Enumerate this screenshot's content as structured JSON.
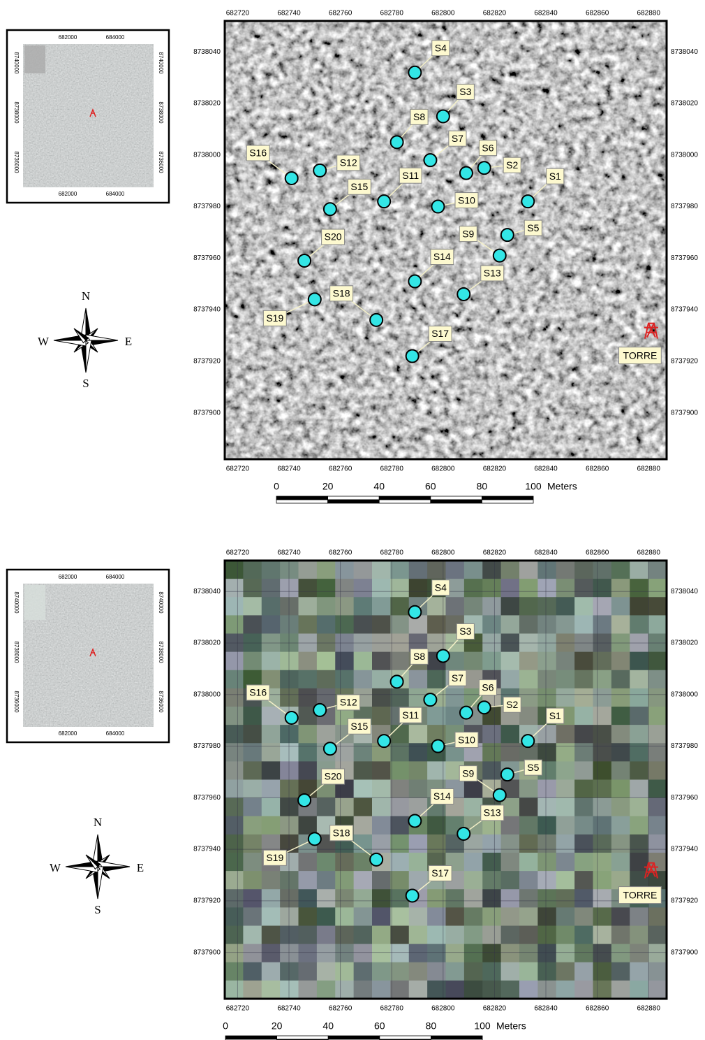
{
  "panels": [
    {
      "inset": {
        "xlim": [
          680118,
          685618
        ],
        "ylim": [
          8734986,
          8740761
        ],
        "xticks": [
          682000,
          684000
        ],
        "yticks": [
          8740000,
          8738000,
          8736000
        ]
      },
      "compass": {
        "n": "N",
        "w": "W",
        "e": "E",
        "s": "S"
      },
      "map": {
        "xlim": [
          682715,
          682887
        ],
        "ylim": [
          8737882,
          8738052
        ],
        "grid": false,
        "xticks": [
          682720,
          682740,
          682760,
          682780,
          682800,
          682820,
          682840,
          682860,
          682880
        ],
        "yticks": [
          8737900,
          8737920,
          8737940,
          8737960,
          8737980,
          8738000,
          8738020,
          8738040
        ],
        "point_color": "#33e6e6",
        "sites": [
          {
            "name": "S1",
            "x": 682833,
            "y": 8737982
          },
          {
            "name": "S2",
            "x": 682816,
            "y": 8737995
          },
          {
            "name": "S3",
            "x": 682800,
            "y": 8738015
          },
          {
            "name": "S4",
            "x": 682789,
            "y": 8738032
          },
          {
            "name": "S5",
            "x": 682825,
            "y": 8737969
          },
          {
            "name": "S6",
            "x": 682809,
            "y": 8737993
          },
          {
            "name": "S7",
            "x": 682795,
            "y": 8737998
          },
          {
            "name": "S8",
            "x": 682782,
            "y": 8738005
          },
          {
            "name": "S9",
            "x": 682822,
            "y": 8737961
          },
          {
            "name": "S10",
            "x": 682798,
            "y": 8737980
          },
          {
            "name": "S11",
            "x": 682777,
            "y": 8737982
          },
          {
            "name": "S12",
            "x": 682752,
            "y": 8737994
          },
          {
            "name": "S13",
            "x": 682808,
            "y": 8737946
          },
          {
            "name": "S14",
            "x": 682789,
            "y": 8737951
          },
          {
            "name": "S15",
            "x": 682756,
            "y": 8737979
          },
          {
            "name": "S16",
            "x": 682741,
            "y": 8737991
          },
          {
            "name": "S17",
            "x": 682788,
            "y": 8737922
          },
          {
            "name": "S18",
            "x": 682774,
            "y": 8737936
          },
          {
            "name": "S19",
            "x": 682750,
            "y": 8737944
          },
          {
            "name": "S20",
            "x": 682746,
            "y": 8737959
          }
        ],
        "tower": {
          "label": "TORRE",
          "x": 682881,
          "y": 8737932
        }
      },
      "scalebar": {
        "ticks": [
          0,
          20,
          40,
          60,
          80,
          100
        ],
        "unit": "Meters"
      }
    },
    {
      "inset": {
        "xlim": [
          680118,
          685618
        ],
        "ylim": [
          8734986,
          8740761
        ],
        "xticks": [
          682000,
          684000
        ],
        "yticks": [
          8740000,
          8738000,
          8736000
        ]
      },
      "compass": {
        "n": "N",
        "w": "W",
        "e": "E",
        "s": "S"
      },
      "map": {
        "xlim": [
          682715,
          682887
        ],
        "ylim": [
          8737882,
          8738052
        ],
        "grid": true,
        "xticks": [
          682720,
          682740,
          682760,
          682780,
          682800,
          682820,
          682840,
          682860,
          682880
        ],
        "yticks": [
          8737900,
          8737920,
          8737940,
          8737960,
          8737980,
          8738000,
          8738020,
          8738040
        ],
        "point_color": "#33e6e6",
        "sites": [
          {
            "name": "S1",
            "x": 682833,
            "y": 8737982
          },
          {
            "name": "S2",
            "x": 682816,
            "y": 8737995
          },
          {
            "name": "S3",
            "x": 682800,
            "y": 8738015
          },
          {
            "name": "S4",
            "x": 682789,
            "y": 8738032
          },
          {
            "name": "S5",
            "x": 682825,
            "y": 8737969
          },
          {
            "name": "S6",
            "x": 682809,
            "y": 8737993
          },
          {
            "name": "S7",
            "x": 682795,
            "y": 8737998
          },
          {
            "name": "S8",
            "x": 682782,
            "y": 8738005
          },
          {
            "name": "S9",
            "x": 682822,
            "y": 8737961
          },
          {
            "name": "S10",
            "x": 682798,
            "y": 8737980
          },
          {
            "name": "S11",
            "x": 682777,
            "y": 8737982
          },
          {
            "name": "S12",
            "x": 682752,
            "y": 8737994
          },
          {
            "name": "S13",
            "x": 682808,
            "y": 8737946
          },
          {
            "name": "S14",
            "x": 682789,
            "y": 8737951
          },
          {
            "name": "S15",
            "x": 682756,
            "y": 8737979
          },
          {
            "name": "S16",
            "x": 682741,
            "y": 8737991
          },
          {
            "name": "S17",
            "x": 682788,
            "y": 8737922
          },
          {
            "name": "S18",
            "x": 682774,
            "y": 8737936
          },
          {
            "name": "S19",
            "x": 682750,
            "y": 8737944
          },
          {
            "name": "S20",
            "x": 682746,
            "y": 8737959
          }
        ],
        "tower": {
          "label": "TORRE",
          "x": 682881,
          "y": 8737932
        }
      },
      "scalebar": {
        "ticks": [
          0,
          20,
          40,
          60,
          80,
          100
        ],
        "unit": "Meters"
      }
    }
  ]
}
